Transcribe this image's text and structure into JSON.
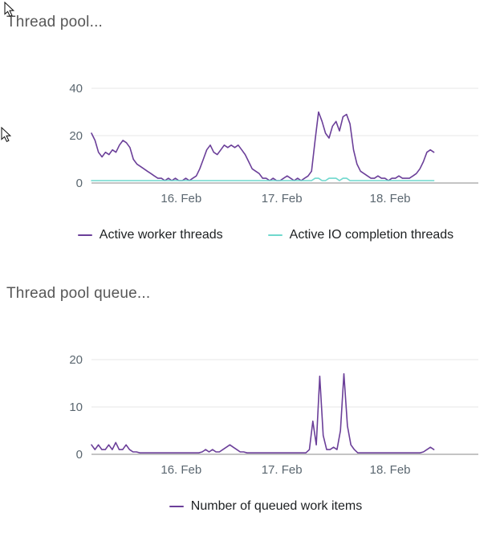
{
  "chart_data": [
    {
      "type": "line",
      "title": "Thread pool...",
      "ylim": [
        0,
        40
      ],
      "yticks": [
        0,
        20,
        40
      ],
      "grid": "horizontal",
      "legend_position": "bottom",
      "data_span": [
        0,
        0.885
      ],
      "x_ticks": [
        {
          "pos": 0.232,
          "label": "16. Feb"
        },
        {
          "pos": 0.492,
          "label": "17. Feb"
        },
        {
          "pos": 0.772,
          "label": "18. Feb"
        }
      ],
      "series": [
        {
          "name": "Active worker threads",
          "color": "#6b3f99",
          "values": [
            21,
            18,
            13,
            11,
            13,
            12,
            14,
            13,
            16,
            18,
            17,
            15,
            10,
            8,
            7,
            6,
            5,
            4,
            3,
            2,
            2,
            1,
            2,
            1,
            2,
            1,
            1,
            2,
            1,
            2,
            3,
            6,
            10,
            14,
            16,
            13,
            12,
            14,
            16,
            15,
            16,
            15,
            16,
            14,
            12,
            9,
            6,
            5,
            4,
            2,
            2,
            1,
            2,
            1,
            1,
            2,
            3,
            2,
            1,
            2,
            1,
            2,
            3,
            5,
            18,
            30,
            26,
            21,
            19,
            24,
            26,
            22,
            28,
            29,
            25,
            14,
            8,
            5,
            4,
            3,
            2,
            2,
            3,
            2,
            2,
            1,
            2,
            2,
            3,
            2,
            2,
            2,
            3,
            4,
            6,
            9,
            13,
            14,
            13
          ]
        },
        {
          "name": "Active IO completion threads",
          "color": "#6fd8cd",
          "values": [
            1,
            1,
            1,
            1,
            1,
            1,
            1,
            1,
            1,
            1,
            1,
            1,
            1,
            1,
            1,
            1,
            1,
            1,
            1,
            1,
            1,
            1,
            1,
            1,
            1,
            1,
            1,
            1,
            1,
            1,
            1,
            1,
            1,
            1,
            1,
            1,
            1,
            1,
            1,
            1,
            1,
            1,
            1,
            1,
            1,
            1,
            1,
            1,
            1,
            1,
            1,
            1,
            1,
            1,
            1,
            1,
            1,
            1,
            1,
            1,
            1,
            1,
            1,
            1,
            2,
            2,
            1,
            1,
            2,
            2,
            2,
            1,
            2,
            2,
            1,
            1,
            1,
            1,
            1,
            1,
            1,
            1,
            1,
            1,
            1,
            1,
            1,
            1,
            1,
            1,
            1,
            1,
            1,
            1,
            1,
            1,
            1,
            1,
            1
          ]
        }
      ]
    },
    {
      "type": "line",
      "title": "Thread pool queue...",
      "ylim": [
        0,
        20
      ],
      "yticks": [
        0,
        10,
        20
      ],
      "grid": "horizontal",
      "legend_position": "bottom",
      "data_span": [
        0,
        0.885
      ],
      "x_ticks": [
        {
          "pos": 0.232,
          "label": "16. Feb"
        },
        {
          "pos": 0.492,
          "label": "17. Feb"
        },
        {
          "pos": 0.772,
          "label": "18. Feb"
        }
      ],
      "series": [
        {
          "name": "Number of queued work items",
          "color": "#6b3f99",
          "values": [
            2,
            1,
            2,
            1,
            1,
            2,
            1,
            2.5,
            1,
            1,
            2,
            1,
            0.5,
            0.5,
            0.3,
            0.3,
            0.3,
            0.3,
            0.3,
            0.3,
            0.3,
            0.3,
            0.3,
            0.3,
            0.3,
            0.3,
            0.3,
            0.3,
            0.3,
            0.3,
            0.3,
            0.3,
            0.5,
            1,
            0.5,
            1,
            0.5,
            0.5,
            1,
            1.5,
            2,
            1.5,
            1,
            0.5,
            0.5,
            0.3,
            0.3,
            0.3,
            0.3,
            0.3,
            0.3,
            0.3,
            0.3,
            0.3,
            0.3,
            0.3,
            0.3,
            0.3,
            0.3,
            0.3,
            0.3,
            0.3,
            0.3,
            1,
            7,
            2,
            16.5,
            4,
            1,
            1,
            1.5,
            1,
            5,
            17,
            6,
            2,
            1,
            0.3,
            0.3,
            0.3,
            0.3,
            0.3,
            0.3,
            0.3,
            0.3,
            0.3,
            0.3,
            0.3,
            0.3,
            0.3,
            0.3,
            0.3,
            0.3,
            0.3,
            0.3,
            0.3,
            0.5,
            1,
            1.5,
            1
          ]
        }
      ]
    }
  ]
}
